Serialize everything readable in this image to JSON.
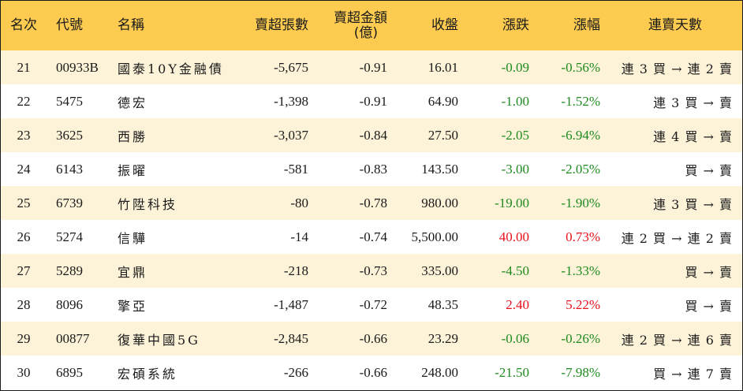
{
  "headers": {
    "rank": "名次",
    "code": "代號",
    "name": "名稱",
    "net_sell_shares": "賣超張數",
    "net_sell_amount_line1": "賣超金額",
    "net_sell_amount_line2": "(億)",
    "close": "收盤",
    "change": "漲跌",
    "change_pct": "漲幅",
    "streak": "連賣天數"
  },
  "colors": {
    "header_bg": "#fccb50",
    "row_stripe": "#fdf3d9",
    "up": "#e8111b",
    "down": "#1f8a1f"
  },
  "rows": [
    {
      "rank": "21",
      "code": "00933B",
      "name": "國泰10Y金融債",
      "shares": "-5,675",
      "amount": "-0.91",
      "close": "16.01",
      "change": "-0.09",
      "pct": "-0.56%",
      "dir": "down",
      "streak": "連 3 買 → 連 2 賣"
    },
    {
      "rank": "22",
      "code": "5475",
      "name": "德宏",
      "shares": "-1,398",
      "amount": "-0.91",
      "close": "64.90",
      "change": "-1.00",
      "pct": "-1.52%",
      "dir": "down",
      "streak": "連 3 買 → 賣"
    },
    {
      "rank": "23",
      "code": "3625",
      "name": "西勝",
      "shares": "-3,037",
      "amount": "-0.84",
      "close": "27.50",
      "change": "-2.05",
      "pct": "-6.94%",
      "dir": "down",
      "streak": "連 4 買 → 賣"
    },
    {
      "rank": "24",
      "code": "6143",
      "name": "振曜",
      "shares": "-581",
      "amount": "-0.83",
      "close": "143.50",
      "change": "-3.00",
      "pct": "-2.05%",
      "dir": "down",
      "streak": "買 → 賣"
    },
    {
      "rank": "25",
      "code": "6739",
      "name": "竹陞科技",
      "shares": "-80",
      "amount": "-0.78",
      "close": "980.00",
      "change": "-19.00",
      "pct": "-1.90%",
      "dir": "down",
      "streak": "連 3 買 → 賣"
    },
    {
      "rank": "26",
      "code": "5274",
      "name": "信驊",
      "shares": "-14",
      "amount": "-0.74",
      "close": "5,500.00",
      "change": "40.00",
      "pct": "0.73%",
      "dir": "up",
      "streak": "連 2 買 → 連 2 賣"
    },
    {
      "rank": "27",
      "code": "5289",
      "name": "宜鼎",
      "shares": "-218",
      "amount": "-0.73",
      "close": "335.00",
      "change": "-4.50",
      "pct": "-1.33%",
      "dir": "down",
      "streak": "買 → 賣"
    },
    {
      "rank": "28",
      "code": "8096",
      "name": "擎亞",
      "shares": "-1,487",
      "amount": "-0.72",
      "close": "48.35",
      "change": "2.40",
      "pct": "5.22%",
      "dir": "up",
      "streak": "買 → 賣"
    },
    {
      "rank": "29",
      "code": "00877",
      "name": "復華中國5G",
      "shares": "-2,845",
      "amount": "-0.66",
      "close": "23.29",
      "change": "-0.06",
      "pct": "-0.26%",
      "dir": "down",
      "streak": "連 2 買 → 連 6 賣"
    },
    {
      "rank": "30",
      "code": "6895",
      "name": "宏碩系統",
      "shares": "-266",
      "amount": "-0.66",
      "close": "248.00",
      "change": "-21.50",
      "pct": "-7.98%",
      "dir": "down",
      "streak": "買 → 連 7 賣"
    }
  ]
}
